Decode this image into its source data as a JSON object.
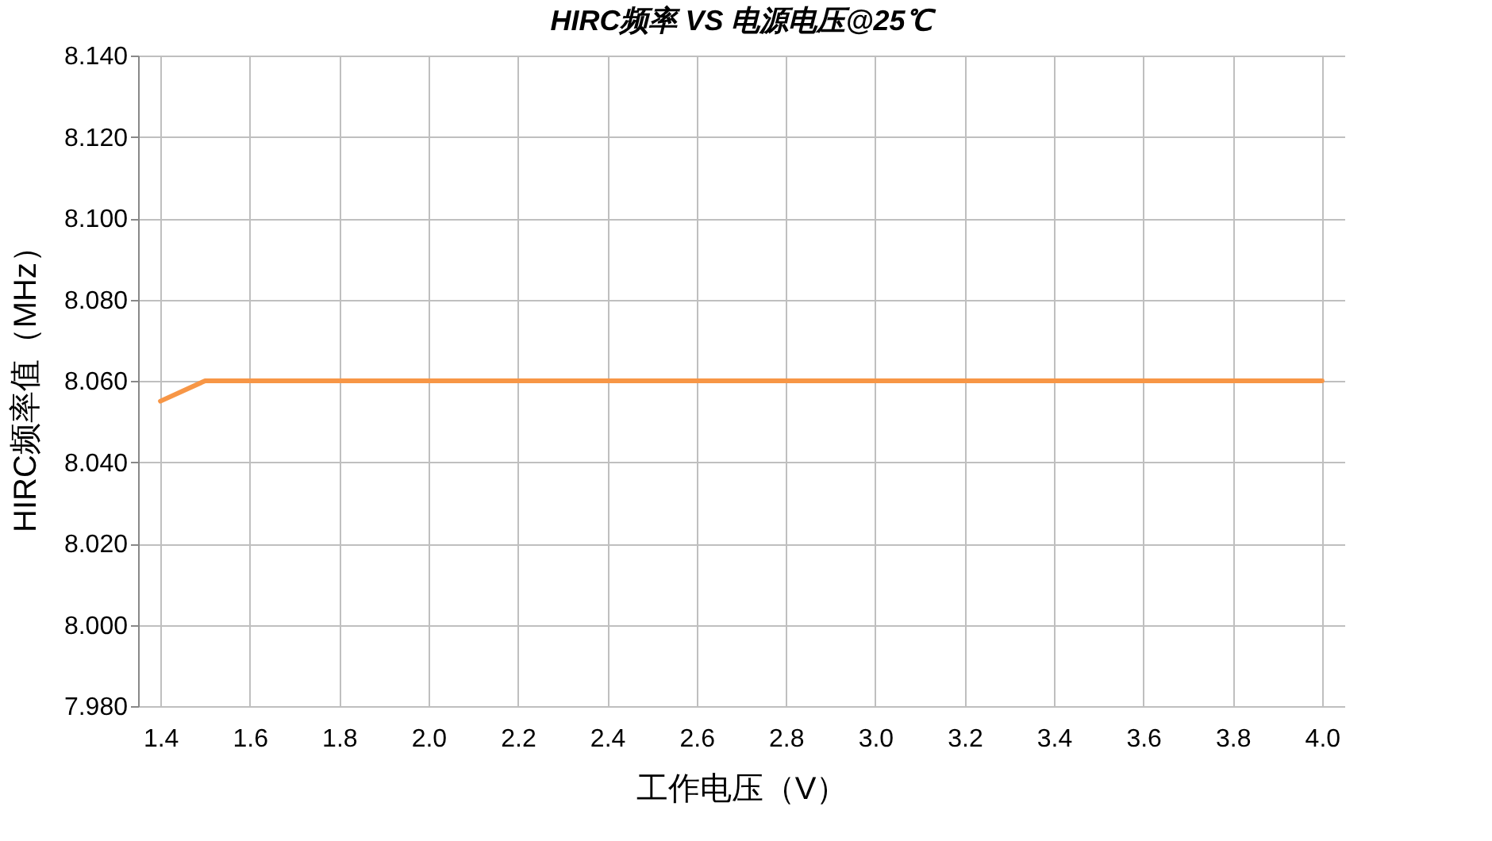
{
  "chart_data": {
    "type": "line",
    "title": "HIRC频率 VS 电源电压@25℃",
    "xlabel": "工作电压（V）",
    "ylabel": "HIRC频率值（MHz）",
    "x": [
      1.4,
      1.5,
      1.6,
      1.7,
      1.8,
      1.9,
      2.0,
      2.1,
      2.2,
      2.3,
      2.4,
      2.5,
      2.6,
      2.7,
      2.8,
      2.9,
      3.0,
      3.1,
      3.2,
      3.3,
      3.4,
      3.5,
      3.6,
      3.7,
      3.8,
      3.9,
      4.0
    ],
    "series": [
      {
        "color": "#f79646",
        "values": [
          8.055,
          8.06,
          8.06,
          8.06,
          8.06,
          8.06,
          8.06,
          8.06,
          8.06,
          8.06,
          8.06,
          8.06,
          8.06,
          8.06,
          8.06,
          8.06,
          8.06,
          8.06,
          8.06,
          8.06,
          8.06,
          8.06,
          8.06,
          8.06,
          8.06,
          8.06,
          8.06
        ]
      }
    ],
    "xlim": [
      1.35,
      4.05
    ],
    "xticks": [
      1.4,
      1.6,
      1.8,
      {
        "value": 2.0,
        "label": "2.0"
      },
      2.2,
      2.4,
      2.6,
      2.8,
      {
        "value": 3.0,
        "label": "3.0"
      },
      3.2,
      3.4,
      3.6,
      3.8,
      {
        "value": 4.0,
        "label": "4.0"
      }
    ],
    "ylim": [
      7.98,
      8.14
    ],
    "yticks": [
      {
        "value": 7.98,
        "label": "7.980"
      },
      {
        "value": 8.0,
        "label": "8.000"
      },
      {
        "value": 8.02,
        "label": "8.020"
      },
      {
        "value": 8.04,
        "label": "8.040"
      },
      {
        "value": 8.06,
        "label": "8.060"
      },
      {
        "value": 8.08,
        "label": "8.080"
      },
      {
        "value": 8.1,
        "label": "8.100"
      },
      {
        "value": 8.12,
        "label": "8.120"
      },
      {
        "value": 8.14,
        "label": "8.140"
      }
    ],
    "grid": true,
    "marker": "none",
    "line_style": "solid"
  }
}
